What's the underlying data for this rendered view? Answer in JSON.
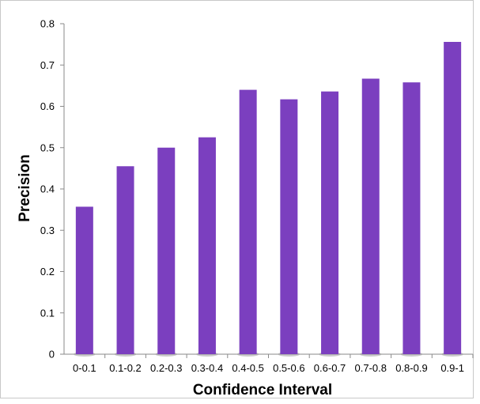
{
  "chart_data": {
    "type": "bar",
    "title": "",
    "xlabel": "Confidence Interval",
    "ylabel": "Precision",
    "categories": [
      "0-0.1",
      "0.1-0.2",
      "0.2-0.3",
      "0.3-0.4",
      "0.4-0.5",
      "0.5-0.6",
      "0.6-0.7",
      "0.7-0.8",
      "0.8-0.9",
      "0.9-1"
    ],
    "values": [
      0.357,
      0.455,
      0.5,
      0.525,
      0.64,
      0.617,
      0.636,
      0.667,
      0.658,
      0.756
    ],
    "ylim": [
      0,
      0.8
    ],
    "yticks": [
      "0",
      "0.1",
      "0.2",
      "0.3",
      "0.4",
      "0.5",
      "0.6",
      "0.7",
      "0.8"
    ],
    "grid": false,
    "legend": "none",
    "bar_color": "#7b3fbf",
    "shadow_color": "#a0a0a0"
  }
}
